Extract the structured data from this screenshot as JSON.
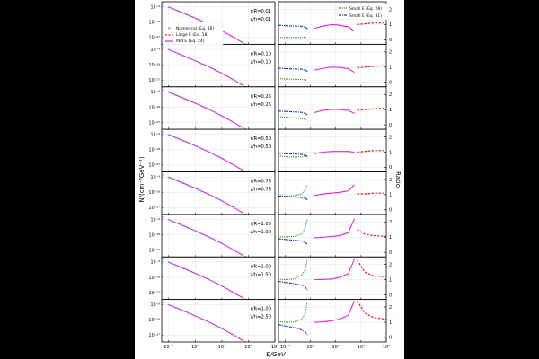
{
  "colors": {
    "numerical": "#6fa8dc",
    "large_e": "#e02020",
    "mid_e": "#e020e0",
    "small_e28": "#1e9e1e",
    "small_e31": "#2030b0",
    "frame": "#000000",
    "outer_band": "#000000"
  },
  "chart_data": {
    "type": "line",
    "grid": true,
    "log_x": true,
    "xlim": [
      0.003,
      1000000
    ],
    "xlabel": "E/GeV",
    "left_ylabel": "N/(cm⁻³GeV⁻¹)",
    "right_ylabel": "Ratio",
    "x_ticks": [
      {
        "value": 0.01,
        "label": "10⁻²"
      },
      {
        "value": 1,
        "label": "10⁰"
      },
      {
        "value": 100,
        "label": "10²"
      },
      {
        "value": 10000,
        "label": "10⁴"
      },
      {
        "value": 1000000,
        "label": "10⁶"
      }
    ],
    "left_y_ticks": [
      {
        "exp": -9,
        "label": "10⁻⁹"
      },
      {
        "exp": -18,
        "label": "10⁻¹⁸"
      },
      {
        "exp": -27,
        "label": "10⁻²⁷"
      }
    ],
    "left_ylim_exp": [
      -31,
      -6
    ],
    "right_y_ticks": [
      0,
      1,
      2
    ],
    "right_ylim": [
      -0.3,
      2.5
    ],
    "left_legend": [
      "Numerical (Eq. 16)",
      "Large E (Eq. 18)",
      "Mid E (Eq. 24)"
    ],
    "right_legend": [
      "Small E (Eq. 28)",
      "Small E (Eq. 31)"
    ],
    "spectrum_log10_N": {
      "numerical": {
        "x": [
          0.004,
          0.01,
          0.03,
          0.1,
          0.3,
          1,
          3,
          10,
          30,
          100
        ],
        "y": [
          -7.5,
          -9.1,
          -10.6,
          -12.3,
          -13.9,
          -15.6,
          -17.3,
          -19.1,
          -21.0,
          -23.0
        ]
      },
      "mid_e": {
        "x": [
          0.01,
          0.1,
          1,
          10,
          100,
          1000,
          3000
        ],
        "y": [
          -9.1,
          -12.3,
          -15.6,
          -19.1,
          -23.0,
          -27.4,
          -29.6
        ]
      },
      "large_e": {
        "x": [
          3000,
          10000,
          30000,
          100000,
          300000,
          1000000
        ],
        "y": [
          -29.6,
          -31.8,
          -33.8,
          -36.0,
          -38.0,
          -40.2
        ]
      }
    },
    "panels": [
      {
        "r_label": "r/R=0.01",
        "z_label": "z/h=0.01",
        "ratio_small28": {
          "x": [
            0.003,
            0.01,
            0.05,
            0.2,
            0.5
          ],
          "y": [
            0.15,
            0.15,
            0.15,
            0.15,
            0.15
          ]
        },
        "ratio_small31": {
          "x": [
            0.003,
            0.01,
            0.05,
            0.2,
            0.4,
            0.6
          ],
          "y": [
            0.95,
            0.92,
            0.9,
            0.88,
            0.82,
            0.72
          ]
        },
        "ratio_mid": {
          "x": [
            2,
            10,
            50,
            200,
            1000,
            3000
          ],
          "y": [
            0.75,
            0.9,
            1.0,
            0.95,
            0.85,
            0.55
          ]
        },
        "ratio_large": {
          "x": [
            5000,
            20000,
            100000,
            1000000
          ],
          "y": [
            1.0,
            1.05,
            1.1,
            1.1
          ]
        }
      },
      {
        "r_label": "r/R=0.10",
        "z_label": "z/h=0.10",
        "ratio_small28": {
          "x": [
            0.003,
            0.01,
            0.05,
            0.2,
            0.5
          ],
          "y": [
            0.25,
            0.22,
            0.2,
            0.18,
            0.15
          ]
        },
        "ratio_small31": {
          "x": [
            0.003,
            0.01,
            0.05,
            0.2,
            0.4,
            0.6
          ],
          "y": [
            0.92,
            0.9,
            0.88,
            0.86,
            0.8,
            0.7
          ]
        },
        "ratio_mid": {
          "x": [
            2,
            10,
            50,
            200,
            1000,
            3000
          ],
          "y": [
            0.8,
            0.92,
            1.0,
            0.98,
            0.9,
            0.65
          ]
        },
        "ratio_large": {
          "x": [
            5000,
            20000,
            100000,
            1000000
          ],
          "y": [
            0.95,
            1.0,
            1.05,
            1.1
          ]
        }
      },
      {
        "r_label": "r/R=0.25",
        "z_label": "z/h=0.25",
        "ratio_small28": {
          "x": [
            0.003,
            0.01,
            0.05,
            0.2,
            0.5
          ],
          "y": [
            0.55,
            0.5,
            0.45,
            0.4,
            0.35
          ]
        },
        "ratio_small31": {
          "x": [
            0.003,
            0.01,
            0.05,
            0.2,
            0.4,
            0.6
          ],
          "y": [
            0.9,
            0.88,
            0.85,
            0.82,
            0.75,
            0.62
          ]
        },
        "ratio_mid": {
          "x": [
            2,
            10,
            50,
            200,
            1000,
            3000
          ],
          "y": [
            0.8,
            0.95,
            1.02,
            1.0,
            0.95,
            0.75
          ]
        },
        "ratio_large": {
          "x": [
            5000,
            20000,
            100000,
            1000000
          ],
          "y": [
            0.95,
            1.0,
            1.05,
            1.1
          ]
        }
      },
      {
        "r_label": "r/R=0.50",
        "z_label": "z/h=0.50",
        "ratio_small28": {
          "x": [
            0.003,
            0.01,
            0.05,
            0.2,
            0.5
          ],
          "y": [
            0.75,
            0.7,
            0.68,
            0.7,
            0.75
          ]
        },
        "ratio_small31": {
          "x": [
            0.003,
            0.01,
            0.05,
            0.2,
            0.4,
            0.6
          ],
          "y": [
            0.92,
            0.9,
            0.88,
            0.85,
            0.8,
            0.7
          ]
        },
        "ratio_mid": {
          "x": [
            2,
            10,
            50,
            200,
            1000,
            3000
          ],
          "y": [
            0.9,
            1.0,
            1.05,
            1.05,
            1.05,
            1.0
          ]
        },
        "ratio_large": {
          "x": [
            5000,
            20000,
            100000,
            1000000
          ],
          "y": [
            1.0,
            1.05,
            1.1,
            1.1
          ]
        }
      },
      {
        "r_label": "r/R=0.75",
        "z_label": "z/h=0.75",
        "ratio_small28": {
          "x": [
            0.003,
            0.01,
            0.05,
            0.2,
            0.4,
            0.55
          ],
          "y": [
            0.95,
            0.9,
            0.92,
            1.05,
            1.3,
            1.65
          ]
        },
        "ratio_small31": {
          "x": [
            0.003,
            0.01,
            0.05,
            0.2,
            0.4,
            0.6
          ],
          "y": [
            0.9,
            0.88,
            0.85,
            0.82,
            0.76,
            0.65
          ]
        },
        "ratio_mid": {
          "x": [
            2,
            10,
            50,
            200,
            1000,
            3000
          ],
          "y": [
            0.95,
            1.05,
            1.1,
            1.15,
            1.25,
            1.65
          ]
        },
        "ratio_large": {
          "x": [
            5000,
            20000,
            100000,
            1000000
          ],
          "y": [
            1.05,
            1.05,
            1.1,
            1.1
          ]
        }
      },
      {
        "r_label": "r/R=1.00",
        "z_label": "z/h=1.00",
        "ratio_small28": {
          "x": [
            0.003,
            0.01,
            0.05,
            0.2,
            0.4,
            0.55
          ],
          "y": [
            1.05,
            1.02,
            1.05,
            1.2,
            1.6,
            2.2
          ]
        },
        "ratio_small31": {
          "x": [
            0.003,
            0.01,
            0.05,
            0.2,
            0.4,
            0.6
          ],
          "y": [
            0.9,
            0.85,
            0.8,
            0.75,
            0.65,
            0.5
          ]
        },
        "ratio_mid": {
          "x": [
            2,
            10,
            50,
            200,
            1000,
            3000
          ],
          "y": [
            0.95,
            1.0,
            1.05,
            1.1,
            1.3,
            2.2
          ]
        },
        "ratio_large": {
          "x": [
            5000,
            20000,
            100000,
            1000000
          ],
          "y": [
            1.5,
            1.2,
            1.1,
            1.05
          ]
        }
      },
      {
        "r_label": "r/R=1.00",
        "z_label": "z/h=1.50",
        "ratio_small28": {
          "x": [
            0.003,
            0.01,
            0.05,
            0.2,
            0.4,
            0.55
          ],
          "y": [
            1.05,
            1.0,
            1.05,
            1.3,
            1.7,
            2.3
          ]
        },
        "ratio_small31": {
          "x": [
            0.003,
            0.01,
            0.05,
            0.2,
            0.4,
            0.6
          ],
          "y": [
            0.9,
            0.82,
            0.75,
            0.65,
            0.5,
            0.3
          ]
        },
        "ratio_mid": {
          "x": [
            2,
            10,
            50,
            200,
            1000,
            3000
          ],
          "y": [
            1.0,
            1.02,
            1.05,
            1.15,
            1.4,
            2.35
          ]
        },
        "ratio_large": {
          "x": [
            5000,
            20000,
            100000,
            1000000
          ],
          "y": [
            2.3,
            1.5,
            1.25,
            1.2
          ]
        }
      },
      {
        "r_label": "r/R=1.00",
        "z_label": "z/h=2.50",
        "ratio_small28": {
          "x": [
            0.003,
            0.01,
            0.05,
            0.2,
            0.4,
            0.55
          ],
          "y": [
            1.05,
            1.0,
            1.02,
            1.2,
            1.6,
            2.3
          ]
        },
        "ratio_small31": {
          "x": [
            0.003,
            0.01,
            0.05,
            0.2,
            0.4,
            0.6
          ],
          "y": [
            0.85,
            0.75,
            0.65,
            0.5,
            0.35,
            0.15
          ]
        },
        "ratio_mid": {
          "x": [
            2,
            10,
            50,
            200,
            1000,
            3000
          ],
          "y": [
            1.0,
            1.02,
            1.1,
            1.2,
            1.45,
            2.4
          ]
        },
        "ratio_large": {
          "x": [
            5000,
            20000,
            100000,
            1000000
          ],
          "y": [
            2.4,
            1.6,
            1.3,
            1.2
          ]
        }
      }
    ]
  }
}
